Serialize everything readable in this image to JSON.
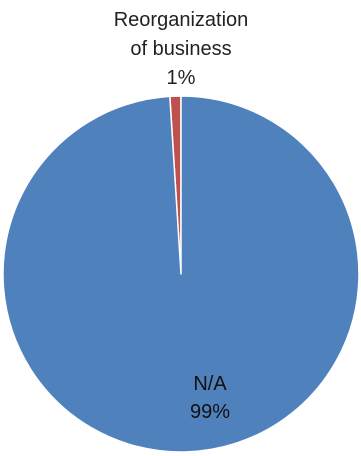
{
  "chart_data": {
    "type": "pie",
    "slices": [
      {
        "label_lines": [
          "Reorganization",
          "of business"
        ],
        "percent_label": "1%",
        "value": 1,
        "color": "#C0504D"
      },
      {
        "label_lines": [
          "N/A"
        ],
        "percent_label": "99%",
        "value": 99,
        "color": "#4F81BD"
      }
    ],
    "start_angle_deg": -3.6,
    "direction": "clockwise"
  }
}
